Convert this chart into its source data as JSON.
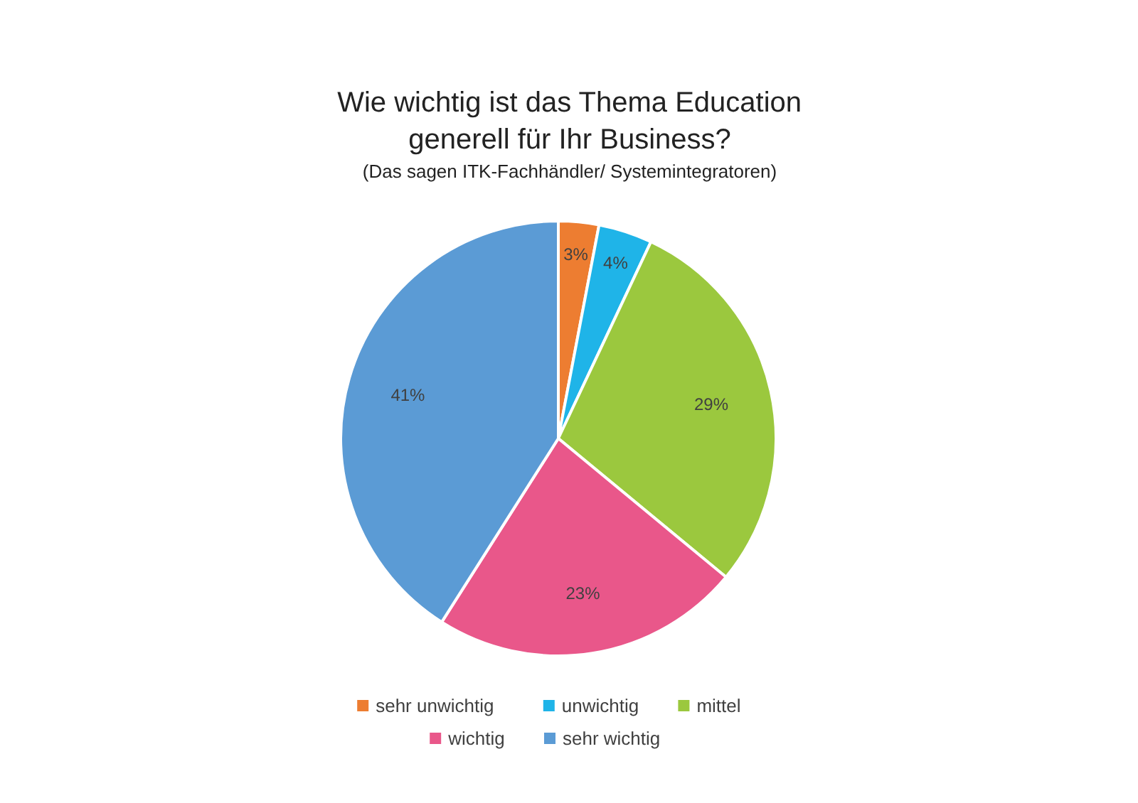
{
  "chart_data": {
    "type": "pie",
    "title": "Wie wichtig ist das Thema Education\ngenerell für Ihr Business?",
    "subtitle": "(Das sagen ITK-Fachhändler/ Systemintegratoren)",
    "categories": [
      "sehr unwichtig",
      "unwichtig",
      "mittel",
      "wichtig",
      "sehr wichtig"
    ],
    "values": [
      3,
      4,
      29,
      23,
      41
    ],
    "colors": [
      "#ed7d31",
      "#1fb4e8",
      "#9bc83e",
      "#e9578a",
      "#5b9bd5"
    ],
    "value_labels": [
      "3%",
      "4%",
      "29%",
      "23%",
      "41%"
    ],
    "legend": "bottom"
  }
}
